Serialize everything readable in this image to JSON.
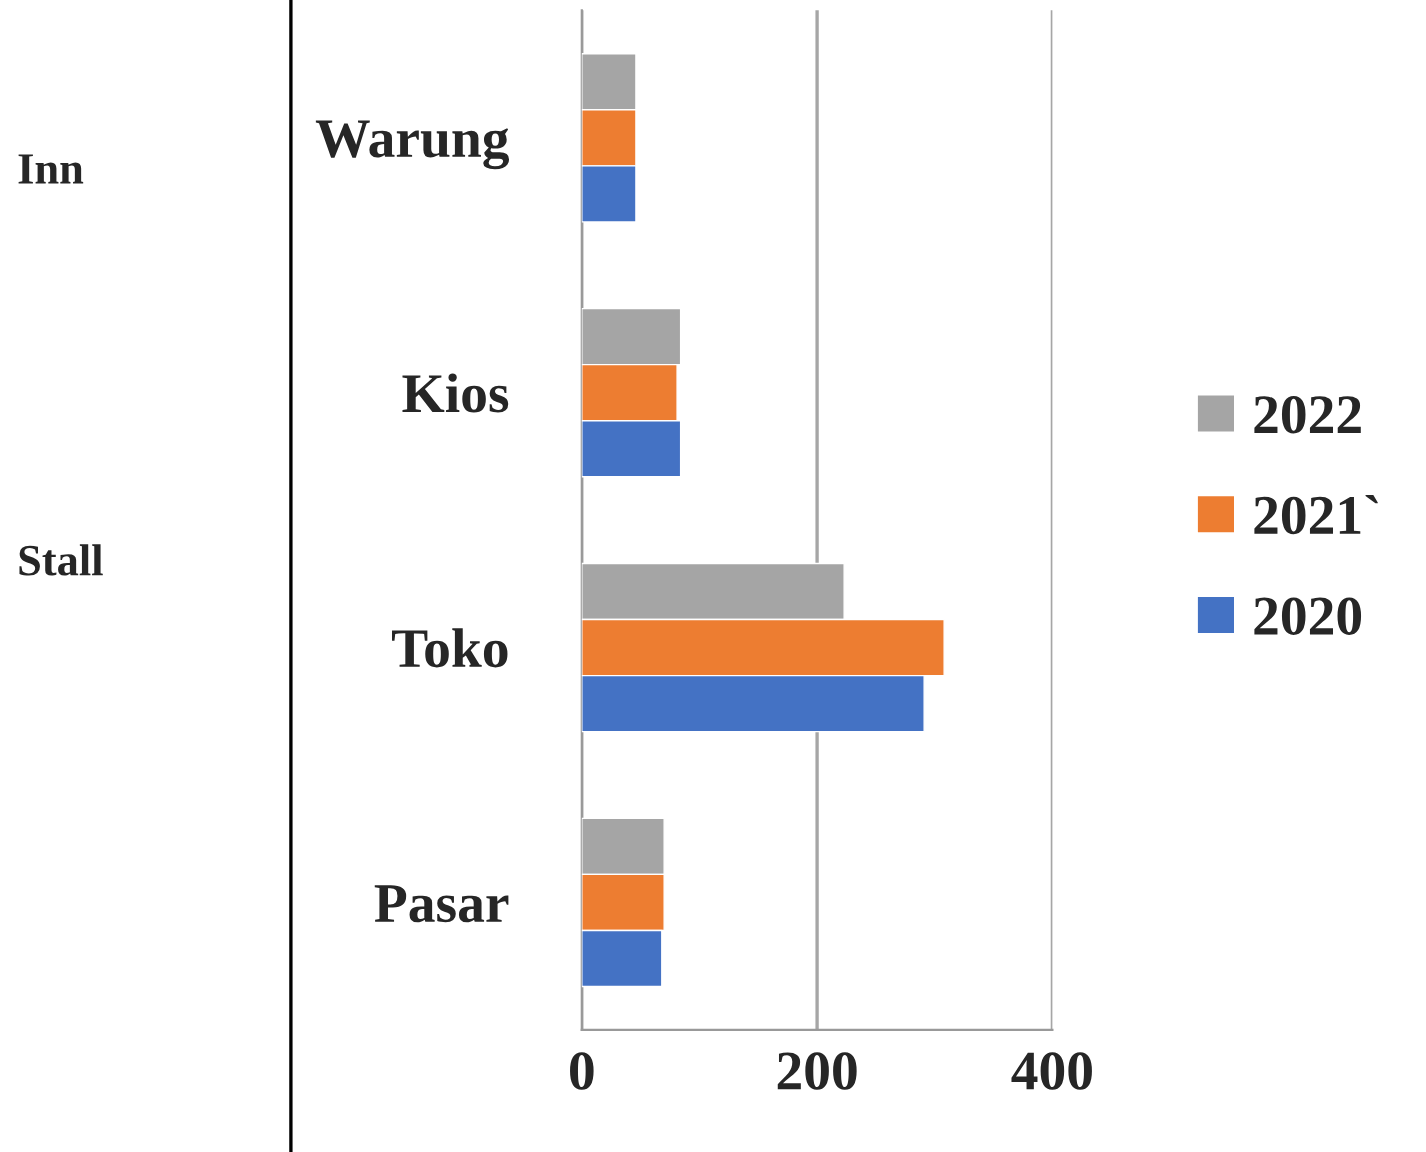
{
  "chart_data": {
    "type": "bar",
    "orientation": "horizontal",
    "categories": [
      "Warung",
      "Kios",
      "Toko",
      "Pasar"
    ],
    "series": [
      {
        "name": "2022",
        "color": "#a5a5a5",
        "values": [
          46,
          84,
          223,
          70
        ]
      },
      {
        "name": "2021`",
        "color": "#ed7d31",
        "values": [
          46,
          81,
          308,
          70
        ]
      },
      {
        "name": "2020",
        "color": "#4472c4",
        "values": [
          46,
          84,
          291,
          68
        ]
      }
    ],
    "xlim": [
      0,
      400
    ],
    "xticks": [
      0,
      200,
      400
    ],
    "grid": "x",
    "legend": "right",
    "annotations": [
      "Inn",
      "Stall"
    ]
  }
}
